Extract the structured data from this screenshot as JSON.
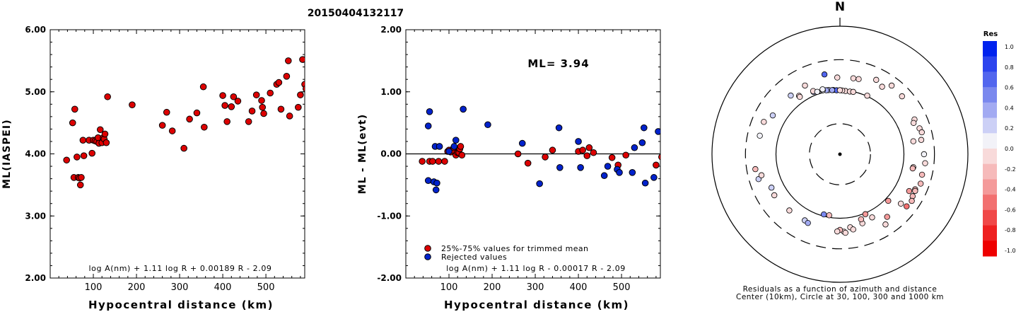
{
  "title": "20150404132117",
  "chart_data": [
    {
      "type": "scatter",
      "ylabel": "ML(IASPEI)",
      "xlabel": "Hypocentral distance (km)",
      "xlim": [
        0,
        590
      ],
      "ylim": [
        2.0,
        6.0
      ],
      "xticks": [
        100,
        200,
        300,
        400,
        500
      ],
      "yticks": [
        "2.00",
        "3.00",
        "4.00",
        "5.00",
        "6.00"
      ],
      "ytick_values": [
        2,
        3,
        4,
        5,
        6
      ],
      "formula": "log A(nm) + 1.11 log R + 0.00189 R - 2.09",
      "series": [
        {
          "color": "#dd0000",
          "points": [
            [
              38,
              3.9
            ],
            [
              52,
              4.5
            ],
            [
              55,
              3.62
            ],
            [
              57,
              4.72
            ],
            [
              62,
              3.95
            ],
            [
              65,
              3.62
            ],
            [
              68,
              3.61
            ],
            [
              70,
              3.5
            ],
            [
              72,
              3.62
            ],
            [
              76,
              4.22
            ],
            [
              78,
              3.97
            ],
            [
              90,
              4.22
            ],
            [
              97,
              4.01
            ],
            [
              100,
              4.22
            ],
            [
              104,
              4.21
            ],
            [
              108,
              4.2
            ],
            [
              111,
              4.26
            ],
            [
              113,
              4.17
            ],
            [
              116,
              4.39
            ],
            [
              120,
              4.18
            ],
            [
              123,
              4.26
            ],
            [
              125,
              4.24
            ],
            [
              127,
              4.32
            ],
            [
              130,
              4.18
            ],
            [
              133,
              4.92
            ],
            [
              190,
              4.79
            ],
            [
              260,
              4.46
            ],
            [
              270,
              4.67
            ],
            [
              283,
              4.37
            ],
            [
              310,
              4.09
            ],
            [
              323,
              4.56
            ],
            [
              340,
              4.66
            ],
            [
              355,
              5.08
            ],
            [
              357,
              4.43
            ],
            [
              400,
              4.94
            ],
            [
              405,
              4.78
            ],
            [
              410,
              4.52
            ],
            [
              420,
              4.76
            ],
            [
              425,
              4.92
            ],
            [
              435,
              4.85
            ],
            [
              460,
              4.52
            ],
            [
              468,
              4.69
            ],
            [
              478,
              4.95
            ],
            [
              490,
              4.86
            ],
            [
              492,
              4.75
            ],
            [
              495,
              4.65
            ],
            [
              510,
              4.98
            ],
            [
              525,
              5.12
            ],
            [
              530,
              5.15
            ],
            [
              535,
              4.72
            ],
            [
              548,
              5.25
            ],
            [
              552,
              5.5
            ],
            [
              555,
              4.61
            ],
            [
              575,
              4.75
            ],
            [
              580,
              4.95
            ],
            [
              585,
              5.52
            ],
            [
              590,
              5.12
            ],
            [
              593,
              5.05
            ]
          ]
        }
      ]
    },
    {
      "type": "scatter",
      "ylabel": "ML - ML(evt)",
      "xlabel": "Hypocentral distance (km)",
      "xlim": [
        0,
        590
      ],
      "ylim": [
        -2.0,
        2.0
      ],
      "xticks": [
        100,
        200,
        300,
        400,
        500
      ],
      "yticks": [
        "-2.00",
        "-1.00",
        "0.00",
        "1.00",
        "2.00"
      ],
      "ytick_values": [
        -2,
        -1,
        0,
        1,
        2
      ],
      "annotation": "ML= 3.94",
      "formula": "log A(nm) + 1.11 log R - 0.00017 R - 2.09",
      "legend": [
        {
          "label": "25%-75% values for trimmed mean",
          "color": "#dd0000"
        },
        {
          "label": "Rejected values",
          "color": "#0022cc"
        }
      ],
      "series": [
        {
          "name": "25%-75% values for trimmed mean",
          "color": "#dd0000",
          "points": [
            [
              38,
              -0.12
            ],
            [
              55,
              -0.12
            ],
            [
              62,
              -0.12
            ],
            [
              76,
              -0.12
            ],
            [
              90,
              -0.12
            ],
            [
              97,
              0.04
            ],
            [
              100,
              0.06
            ],
            [
              104,
              0.03
            ],
            [
              108,
              0.06
            ],
            [
              111,
              0.1
            ],
            [
              116,
              -0.02
            ],
            [
              120,
              0.02
            ],
            [
              123,
              0.02
            ],
            [
              125,
              0.08
            ],
            [
              127,
              0.12
            ],
            [
              130,
              -0.02
            ],
            [
              260,
              0.0
            ],
            [
              283,
              -0.15
            ],
            [
              323,
              -0.05
            ],
            [
              340,
              0.06
            ],
            [
              400,
              0.04
            ],
            [
              410,
              0.06
            ],
            [
              420,
              -0.03
            ],
            [
              425,
              0.1
            ],
            [
              435,
              0.02
            ],
            [
              478,
              -0.06
            ],
            [
              492,
              -0.18
            ],
            [
              510,
              -0.02
            ],
            [
              580,
              -0.18
            ],
            [
              593,
              -0.05
            ]
          ]
        },
        {
          "name": "Rejected values",
          "color": "#0022cc",
          "points": [
            [
              52,
              0.45
            ],
            [
              55,
              0.68
            ],
            [
              52,
              -0.43
            ],
            [
              65,
              -0.45
            ],
            [
              70,
              -0.58
            ],
            [
              72,
              -0.47
            ],
            [
              68,
              0.12
            ],
            [
              78,
              0.12
            ],
            [
              100,
              0.04
            ],
            [
              112,
              0.12
            ],
            [
              116,
              0.22
            ],
            [
              133,
              0.72
            ],
            [
              190,
              0.47
            ],
            [
              270,
              0.17
            ],
            [
              310,
              -0.48
            ],
            [
              355,
              0.42
            ],
            [
              357,
              -0.22
            ],
            [
              400,
              0.2
            ],
            [
              405,
              -0.22
            ],
            [
              460,
              -0.35
            ],
            [
              468,
              -0.2
            ],
            [
              490,
              -0.25
            ],
            [
              495,
              -0.3
            ],
            [
              525,
              -0.3
            ],
            [
              530,
              0.1
            ],
            [
              548,
              0.18
            ],
            [
              552,
              0.42
            ],
            [
              555,
              -0.47
            ],
            [
              575,
              -0.38
            ],
            [
              585,
              0.36
            ]
          ]
        }
      ]
    },
    {
      "type": "scatter",
      "subtype": "polar",
      "north_label": "N",
      "caption_lines": [
        "Residuals as a function of azimuth and distance",
        "Center (10km), Circle at 30, 100, 300 and 1000 km"
      ],
      "rings": [
        {
          "km": 30,
          "style": "dashed"
        },
        {
          "km": 100,
          "style": "solid"
        },
        {
          "km": 300,
          "style": "dashed"
        },
        {
          "km": 1000,
          "style": "solid"
        }
      ],
      "colorbar": {
        "title": "Res",
        "ticks": [
          "1.0",
          "0.8",
          "0.6",
          "0.4",
          "0.2",
          "0.0",
          "-0.2",
          "-0.4",
          "-0.6",
          "-0.8",
          "-1.0"
        ],
        "colors": [
          "#0022ee",
          "#2c44ee",
          "#5266ee",
          "#7a88ee",
          "#a2aaf2",
          "#ccd0f6",
          "#f2f2f8",
          "#f8dada",
          "#f6baba",
          "#f49a9a",
          "#f27070",
          "#f04848",
          "#ee2020",
          "#ee0000"
        ]
      },
      "points_az_dist_res": [
        [
          349,
          186,
          0.72
        ],
        [
          358,
          158,
          0.0
        ],
        [
          10,
          160,
          0.0
        ],
        [
          14,
          162,
          0.0
        ],
        [
          32,
          175,
          0.0
        ],
        [
          26,
          196,
          0.0
        ],
        [
          37,
          220,
          0.0
        ],
        [
          47,
          212,
          0.0
        ],
        [
          65,
          193,
          0.0
        ],
        [
          67,
          178,
          -0.05
        ],
        [
          72,
          203,
          0.0
        ],
        [
          75,
          211,
          -0.05
        ],
        [
          80,
          195,
          -0.05
        ],
        [
          80,
          146,
          -0.15
        ],
        [
          100,
          146,
          -0.15
        ],
        [
          101,
          144,
          -0.18
        ],
        [
          110,
          220,
          -0.18
        ],
        [
          118,
          168,
          -0.35
        ],
        [
          120,
          205,
          -0.3
        ],
        [
          123,
          218,
          -0.3
        ],
        [
          115,
          198,
          -0.25
        ],
        [
          129,
          168,
          0.0
        ],
        [
          153,
          128,
          0.0
        ],
        [
          162,
          136,
          -0.15
        ],
        [
          172,
          142,
          0.0
        ],
        [
          170,
          156,
          -0.15
        ],
        [
          177,
          163,
          -0.1
        ],
        [
          190,
          93,
          -0.2
        ],
        [
          180,
          152,
          -0.2
        ],
        [
          182,
          161,
          -0.1
        ],
        [
          176,
          170,
          -0.1
        ],
        [
          208,
          148,
          0.3
        ],
        [
          205,
          153,
          0.35
        ],
        [
          222,
          152,
          0.0
        ],
        [
          238,
          162,
          -0.05
        ],
        [
          244,
          155,
          0.18
        ],
        [
          260,
          220,
          -0.3
        ],
        [
          253,
          214,
          0.2
        ],
        [
          255,
          186,
          0.0
        ],
        [
          283,
          193,
          0.15
        ],
        [
          293,
          196,
          0.0
        ],
        [
          300,
          163,
          0.3
        ],
        [
          320,
          157,
          0.25
        ],
        [
          325,
          130,
          0.0
        ],
        [
          333,
          160,
          -0.05
        ],
        [
          337,
          114,
          0.35
        ],
        [
          325,
          124,
          0.0
        ],
        [
          350,
          104,
          0.22
        ],
        [
          354,
          102,
          0.55
        ],
        [
          357,
          100,
          0.75
        ],
        [
          353,
          102,
          0.4
        ],
        [
          348,
          105,
          0.35
        ],
        [
          5,
          98,
          0.0
        ],
        [
          9,
          98,
          0.0
        ],
        [
          12,
          99,
          0.0
        ],
        [
          2,
          99,
          0.0
        ],
        [
          0,
          100,
          0.0
        ],
        [
          345,
          108,
          0.15
        ],
        [
          337,
          118,
          0.0
        ],
        [
          345,
          112,
          0.1
        ],
        [
          340,
          109,
          0.05
        ],
        [
          25,
          102,
          0.0
        ],
        [
          157,
          104,
          -0.35
        ],
        [
          195,
          94,
          0.6
        ],
        [
          143,
          168,
          -0.45
        ],
        [
          147,
          203,
          0.0
        ],
        [
          162,
          117,
          -0.25
        ],
        [
          134,
          112,
          -0.4
        ],
        [
          128,
          210,
          -0.55
        ],
        [
          116,
          203,
          -0.3
        ],
        [
          104,
          210,
          -0.25
        ],
        [
          96,
          218,
          -0.15
        ],
        [
          90,
          206,
          0.05
        ]
      ]
    }
  ]
}
